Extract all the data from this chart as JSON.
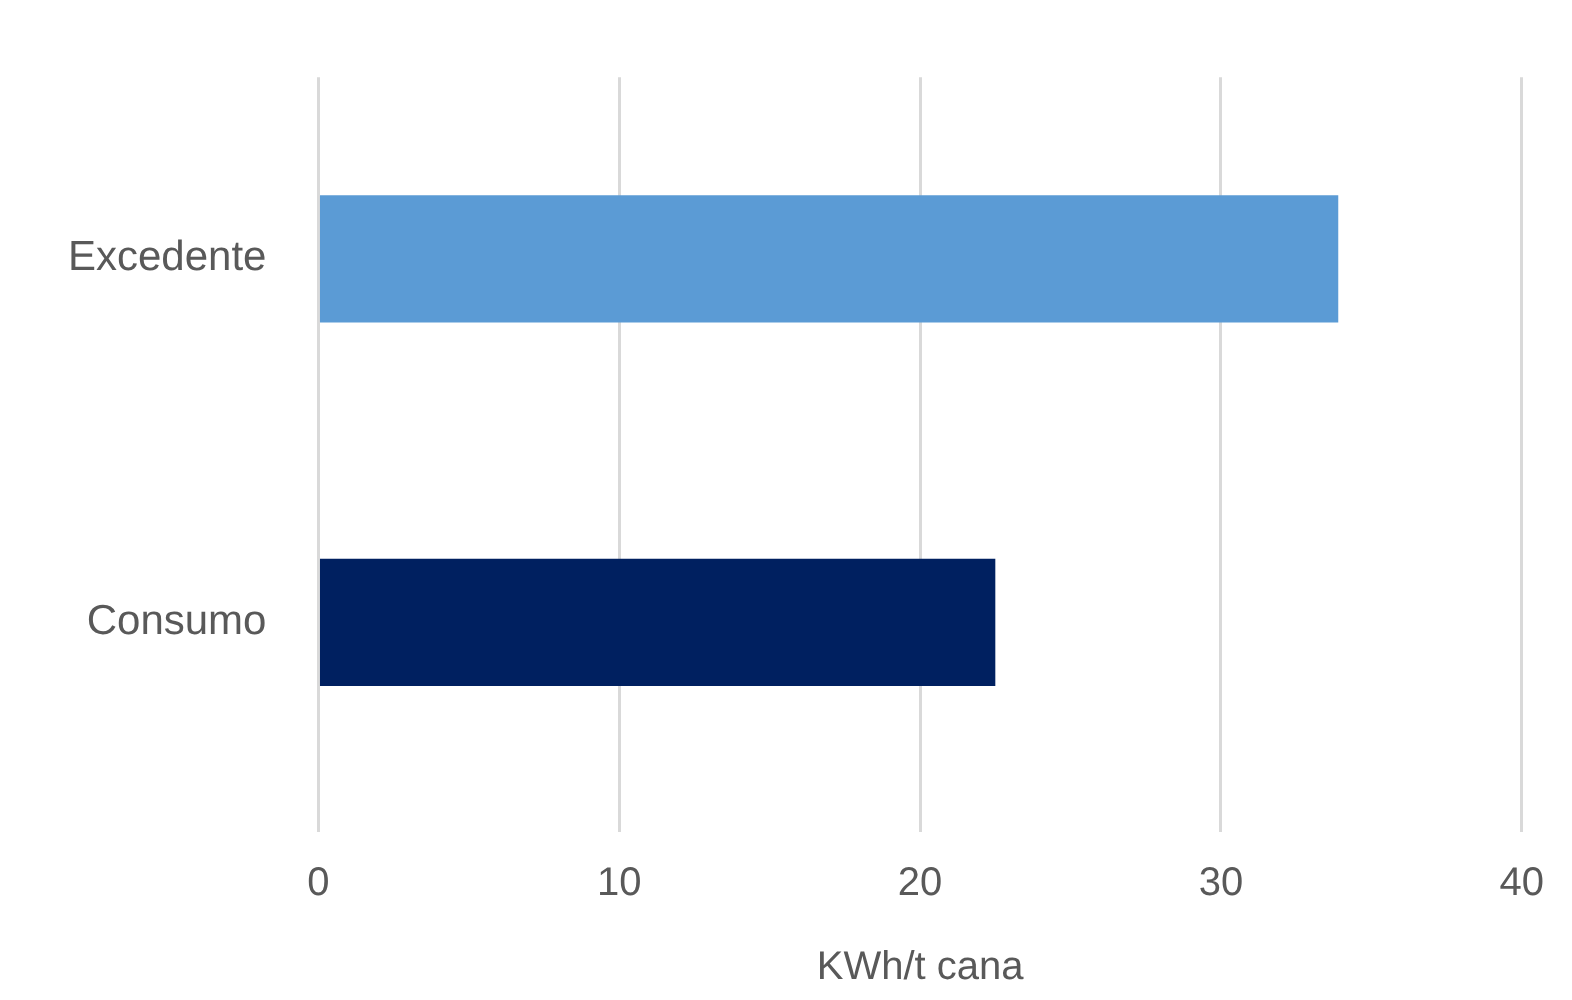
{
  "chart_data": {
    "type": "bar",
    "orientation": "horizontal",
    "xlabel": "KWh/t cana",
    "categories": [
      "Excedente",
      "Consumo"
    ],
    "values": [
      33.9,
      22.5
    ],
    "colors": [
      "#5b9bd5",
      "#002060"
    ],
    "xlim": [
      0,
      40
    ],
    "xticks": [
      0,
      10,
      20,
      30,
      40
    ],
    "grid": "x",
    "legend": false
  }
}
